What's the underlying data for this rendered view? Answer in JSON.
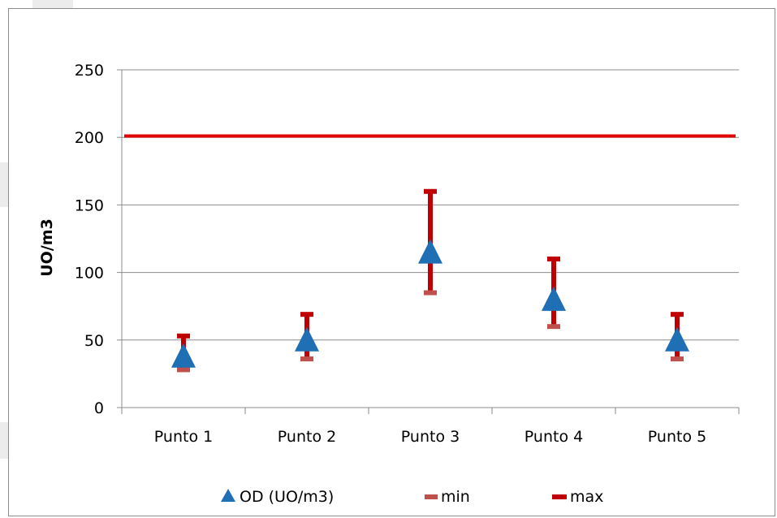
{
  "chart_data": {
    "type": "scatter",
    "title": "",
    "xlabel": "",
    "ylabel": "UO/m3",
    "ylim": [
      0,
      250
    ],
    "yticks": [
      "0",
      "50",
      "100",
      "150",
      "200",
      "250"
    ],
    "grid": true,
    "categories": [
      "Punto 1",
      "Punto 2",
      "Punto 3",
      "Punto 4",
      "Punto 5"
    ],
    "series": [
      {
        "name": "OD (UO/m3)",
        "marker": "triangle",
        "color": "#1f6fb4",
        "values": [
          38,
          50,
          115,
          80,
          50
        ]
      },
      {
        "name": "min",
        "marker": "dash",
        "color": "#c0504d",
        "values": [
          28,
          36,
          85,
          60,
          36
        ]
      },
      {
        "name": "max",
        "marker": "dash",
        "color": "#c00000",
        "values": [
          53,
          69,
          160,
          110,
          69
        ]
      }
    ],
    "reference_line": {
      "value": 201,
      "color": "#e00000"
    },
    "legend_position": "bottom"
  }
}
